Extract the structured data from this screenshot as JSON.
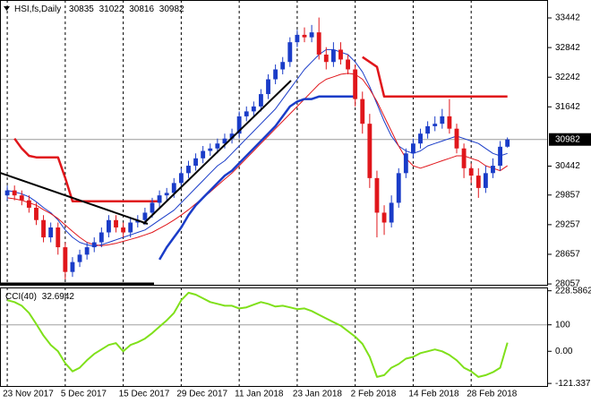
{
  "chart_data": {
    "type": "candlestick",
    "symbol": "HSI,fs,Daily",
    "bull_color": "#1a3cc8",
    "bear_color": "#e0161b",
    "price_line_color": "#9a9a9a",
    "open": [
      29850,
      29950,
      29850,
      29750,
      29600,
      29350,
      29000,
      29200,
      28800,
      28300,
      28500,
      28650,
      28800,
      28900,
      29100,
      29350,
      29200,
      29100,
      29300,
      29350,
      29500,
      29700,
      29850,
      29900,
      30100,
      30300,
      30450,
      30600,
      30750,
      30800,
      30900,
      31000,
      31100,
      31450,
      31550,
      31650,
      31900,
      32200,
      32400,
      32550,
      32950,
      33100,
      33050,
      33150,
      32700,
      32550,
      32800,
      32600,
      32400,
      31800,
      31300,
      30200,
      29500,
      29300,
      29700,
      30300,
      30700,
      30900,
      31100,
      31250,
      31300,
      31450,
      31200,
      30800,
      30400,
      30250,
      30000,
      30300,
      30450,
      30835
    ],
    "high": [
      30050,
      30050,
      29950,
      29850,
      29700,
      29450,
      29300,
      29300,
      28900,
      28600,
      28750,
      28900,
      29000,
      29200,
      29450,
      29450,
      29300,
      29400,
      29450,
      29600,
      29800,
      29950,
      30000,
      30200,
      30400,
      30550,
      30700,
      30850,
      30900,
      31000,
      31100,
      31200,
      31550,
      31650,
      31750,
      32000,
      32300,
      32500,
      32650,
      33050,
      33200,
      33250,
      33300,
      33450,
      32850,
      32950,
      32950,
      32700,
      32500,
      31950,
      31500,
      30350,
      29650,
      29850,
      30400,
      30800,
      31000,
      31200,
      31350,
      31450,
      31600,
      31800,
      31300,
      30900,
      30500,
      30400,
      30450,
      30600,
      30950,
      31022
    ],
    "low": [
      29750,
      29750,
      29650,
      29500,
      29250,
      28900,
      28900,
      28650,
      28150,
      28200,
      28400,
      28550,
      28700,
      28800,
      29000,
      29100,
      29000,
      29000,
      29200,
      29250,
      29400,
      29600,
      29750,
      29800,
      30000,
      30200,
      30350,
      30500,
      30650,
      30700,
      30800,
      30900,
      31000,
      31350,
      31450,
      31550,
      31800,
      32100,
      32300,
      32450,
      32850,
      32950,
      32950,
      32600,
      32400,
      32450,
      32500,
      32300,
      31650,
      31100,
      30000,
      29000,
      29050,
      29200,
      29600,
      30200,
      30600,
      30800,
      31000,
      31150,
      31200,
      31100,
      30700,
      30200,
      30100,
      29800,
      29900,
      30200,
      30350,
      30816
    ],
    "close": [
      29950,
      29850,
      29750,
      29600,
      29350,
      29000,
      29200,
      28800,
      28300,
      28500,
      28650,
      28800,
      28900,
      29100,
      29350,
      29200,
      29100,
      29300,
      29350,
      29500,
      29700,
      29850,
      29900,
      30100,
      30300,
      30450,
      30600,
      30750,
      30800,
      30900,
      31000,
      31100,
      31450,
      31550,
      31650,
      31900,
      32200,
      32400,
      32550,
      32950,
      33100,
      33050,
      33150,
      32700,
      32550,
      32800,
      32600,
      32400,
      31800,
      31300,
      30200,
      29500,
      29300,
      29700,
      30300,
      30700,
      30900,
      31100,
      31250,
      31300,
      31450,
      31200,
      30800,
      30400,
      30250,
      30000,
      30300,
      30450,
      30835,
      30982
    ],
    "overlays": [
      {
        "color": "#1a3cc8",
        "values": [
          29950,
          29920,
          29880,
          29820,
          29720,
          29600,
          29500,
          29350,
          29150,
          29000,
          28900,
          28850,
          28820,
          28850,
          28900,
          28950,
          29000,
          29050,
          29100,
          29150,
          29250,
          29350,
          29450,
          29550,
          29700,
          29850,
          30000,
          30150,
          30300,
          30450,
          30550,
          30700,
          30850,
          31000,
          31150,
          31300,
          31450,
          31600,
          31800,
          32000,
          32200,
          32400,
          32550,
          32700,
          32800,
          32800,
          32750,
          32700,
          32550,
          32350,
          32050,
          31700,
          31350,
          31050,
          30850,
          30750,
          30700,
          30750,
          30850,
          30900,
          30950,
          31000,
          31050,
          31000,
          30950,
          30900,
          30800,
          30700,
          30650,
          30700
        ]
      },
      {
        "color": "#e0161b",
        "values": [
          29800,
          29780,
          29750,
          29700,
          29650,
          29560,
          29480,
          29380,
          29250,
          29120,
          29000,
          28900,
          28850,
          28830,
          28850,
          28880,
          28920,
          28960,
          29000,
          29050,
          29100,
          29180,
          29260,
          29350,
          29450,
          29560,
          29680,
          29800,
          29920,
          30050,
          30180,
          30300,
          30450,
          30600,
          30750,
          30900,
          31050,
          31200,
          31350,
          31500,
          31650,
          31800,
          31950,
          32100,
          32200,
          32250,
          32300,
          32320,
          32300,
          32200,
          32000,
          31750,
          31450,
          31150,
          30850,
          30600,
          30450,
          30400,
          30450,
          30500,
          30550,
          30600,
          30650,
          30650,
          30600,
          30550,
          30450,
          30400,
          30350,
          30450
        ]
      },
      {
        "color": "#1a3cc8",
        "thick": true,
        "values": [
          null,
          null,
          null,
          null,
          null,
          null,
          null,
          null,
          null,
          null,
          null,
          null,
          null,
          null,
          null,
          null,
          null,
          null,
          null,
          null,
          null,
          28550,
          28800,
          29000,
          29200,
          29450,
          29650,
          29800,
          29950,
          30100,
          30250,
          30350,
          30500,
          30650,
          30800,
          30950,
          31100,
          31250,
          31450,
          31650,
          31750,
          31800,
          31800,
          31850,
          31850,
          31850,
          31850,
          31850,
          31850,
          null,
          null,
          null,
          null,
          null,
          null,
          null,
          null,
          null,
          null,
          null,
          null,
          null,
          null,
          null,
          null,
          null,
          null,
          null,
          null,
          null
        ]
      },
      {
        "color": "#e0161b",
        "thick": true,
        "values": [
          null,
          31000,
          30800,
          30650,
          30620,
          30620,
          30620,
          30620,
          30200,
          29730,
          29730,
          29730,
          29730,
          29730,
          29730,
          29730,
          29730,
          29730,
          29730,
          29730,
          29730,
          29730,
          null,
          null,
          null,
          null,
          null,
          null,
          null,
          null,
          null,
          null,
          null,
          null,
          null,
          null,
          null,
          null,
          null,
          null,
          null,
          null,
          null,
          null,
          null,
          null,
          null,
          null,
          null,
          32650,
          32550,
          32450,
          31850,
          31850,
          31850,
          31850,
          31850,
          31850,
          31850,
          31850,
          31850,
          31850,
          31850,
          31850,
          31850,
          31850,
          31850,
          31850,
          31850,
          31850
        ]
      }
    ],
    "xlim": [
      -1,
      74.6
    ],
    "xticks": [
      {
        "value": 0,
        "label": "23 Nov 2017"
      },
      {
        "value": 8,
        "label": "5 Dec 2017"
      },
      {
        "value": 16,
        "label": "15 Dec 2017"
      },
      {
        "value": 24,
        "label": "29 Dec 2017"
      },
      {
        "value": 32,
        "label": "11 Jan 2018"
      },
      {
        "value": 40,
        "label": "23 Jan 2018"
      },
      {
        "value": 48,
        "label": "2 Feb 2018"
      },
      {
        "value": 56,
        "label": "14 Feb 2018"
      },
      {
        "value": 64,
        "label": "28 Feb 2018"
      }
    ],
    "ylim": [
      28040,
      33805
    ],
    "yticks": [
      33442,
      32842,
      32242,
      31642,
      30442,
      29857,
      29257,
      28657,
      28057
    ],
    "cci": {
      "name": "CCI(40)",
      "color": "#7fe01a",
      "values": [
        193,
        186,
        172,
        145,
        103,
        59,
        24,
        0,
        -45,
        -76,
        -62,
        -34,
        -10,
        7,
        24,
        31,
        0,
        24,
        34,
        48,
        69,
        93,
        117,
        145,
        193,
        221,
        214,
        200,
        186,
        179,
        172,
        172,
        162,
        166,
        176,
        186,
        179,
        169,
        172,
        166,
        159,
        162,
        152,
        138,
        124,
        110,
        97,
        76,
        55,
        28,
        -21,
        -97,
        -90,
        -62,
        -48,
        -28,
        -21,
        -7,
        0,
        7,
        0,
        -14,
        -34,
        -62,
        -76,
        -97,
        -90,
        -79,
        -62,
        32.6942
      ],
      "ylim": [
        -131,
        241
      ],
      "yticks": [
        228.5862,
        100,
        {
          "value": 0,
          "label": "0.00"
        },
        -121.337
      ],
      "levels": [
        100
      ]
    }
  }
}
